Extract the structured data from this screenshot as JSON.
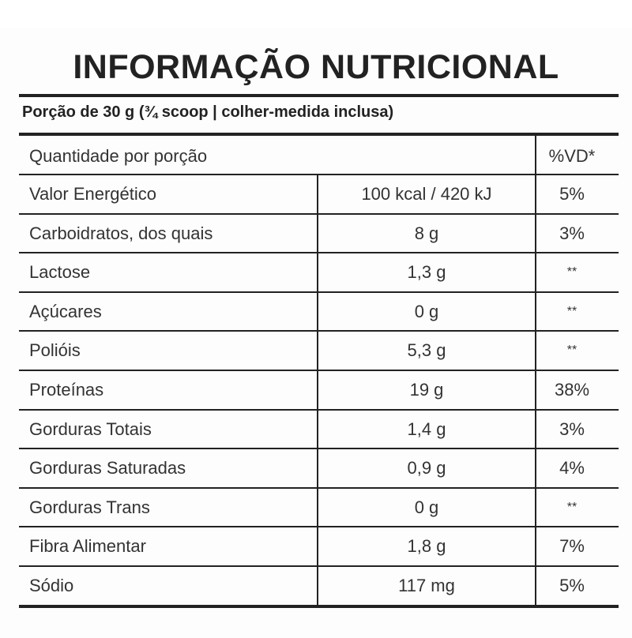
{
  "title": "INFORMAÇÃO NUTRICIONAL",
  "portion": "Porção de 30 g (¾ scoop | colher-medida inclusa)",
  "table": {
    "header": {
      "label": "Quantidade por porção",
      "dv": "%VD*"
    },
    "rows": [
      {
        "name": "Valor Energético",
        "amount": "100 kcal / 420 kJ",
        "dv": "5%"
      },
      {
        "name": "Carboidratos, dos quais",
        "amount": "8 g",
        "dv": "3%"
      },
      {
        "name": "Lactose",
        "amount": "1,3 g",
        "dv": "**"
      },
      {
        "name": "Açúcares",
        "amount": "0 g",
        "dv": "**"
      },
      {
        "name": "Polióis",
        "amount": "5,3 g",
        "dv": "**"
      },
      {
        "name": "Proteínas",
        "amount": "19 g",
        "dv": "38%"
      },
      {
        "name": "Gorduras Totais",
        "amount": "1,4 g",
        "dv": "3%"
      },
      {
        "name": "Gorduras Saturadas",
        "amount": "0,9 g",
        "dv": "4%"
      },
      {
        "name": "Gorduras Trans",
        "amount": "0 g",
        "dv": "**"
      },
      {
        "name": "Fibra Alimentar",
        "amount": "1,8 g",
        "dv": "7%"
      },
      {
        "name": "Sódio",
        "amount": "117 mg",
        "dv": "5%"
      }
    ]
  }
}
